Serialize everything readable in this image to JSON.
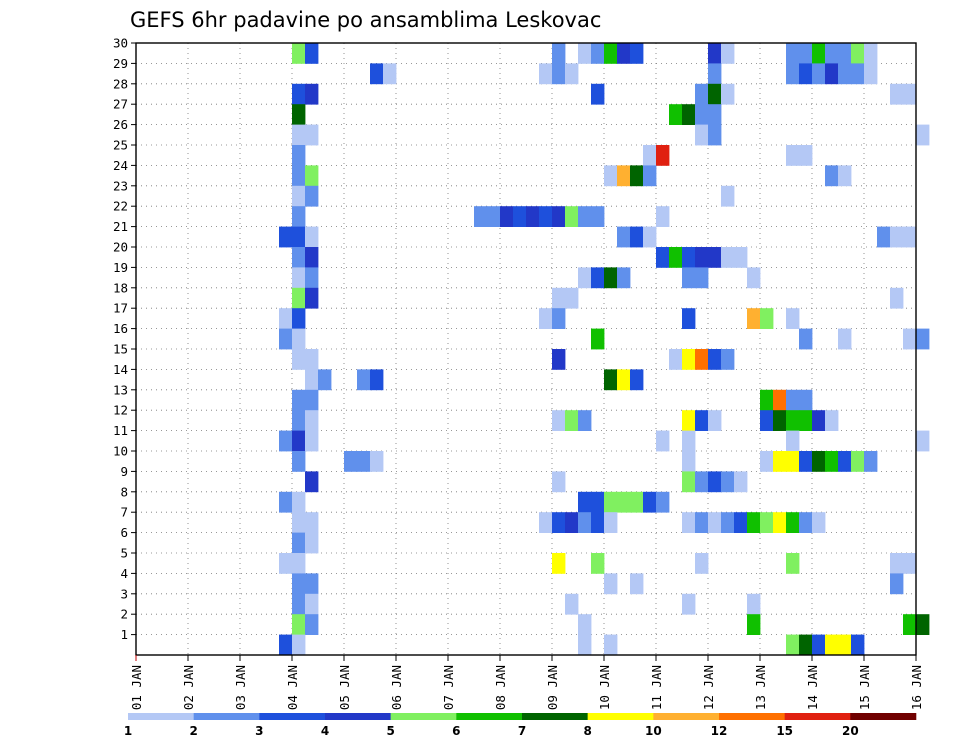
{
  "chart_data": {
    "type": "heatmap",
    "title": "GEFS 6hr padavine po ansamblima Leskovac",
    "xlabel": "",
    "ylabel": "",
    "x_ticks": [
      "01 JAN",
      "02 JAN",
      "03 JAN",
      "04 JAN",
      "05 JAN",
      "06 JAN",
      "07 JAN",
      "08 JAN",
      "09 JAN",
      "10 JAN",
      "11 JAN",
      "12 JAN",
      "13 JAN",
      "14 JAN",
      "15 JAN",
      "16 JAN"
    ],
    "xlim_days": [
      1,
      16
    ],
    "y_ticks": [
      1,
      2,
      3,
      4,
      5,
      6,
      7,
      8,
      9,
      10,
      11,
      12,
      13,
      14,
      15,
      16,
      17,
      18,
      19,
      20,
      21,
      22,
      23,
      24,
      25,
      26,
      27,
      28,
      29,
      30
    ],
    "ylim_members": [
      0,
      30
    ],
    "grid": true,
    "legend": {
      "placement": "bottom",
      "labels": [
        "1",
        "2",
        "3",
        "4",
        "5",
        "6",
        "7",
        "8",
        "10",
        "12",
        "15",
        "20"
      ],
      "colors": [
        "#b4c8f5",
        "#6090ec",
        "#1e50dc",
        "#2238c8",
        "#80f060",
        "#10c000",
        "#006400",
        "#ffff00",
        "#ffb030",
        "#ff7000",
        "#e02010",
        "#700000"
      ]
    },
    "series": [
      {
        "member": 30,
        "cells": [
          [
            4.0,
            5
          ],
          [
            4.25,
            3
          ],
          [
            9.0,
            2
          ],
          [
            9.5,
            1
          ],
          [
            9.75,
            2
          ],
          [
            10.0,
            6
          ],
          [
            10.25,
            4
          ],
          [
            10.5,
            3
          ],
          [
            12.0,
            4
          ],
          [
            12.25,
            1
          ],
          [
            13.5,
            2
          ],
          [
            13.75,
            2
          ],
          [
            14.0,
            6
          ],
          [
            14.25,
            2
          ],
          [
            14.5,
            2
          ],
          [
            14.75,
            5
          ],
          [
            15.0,
            1
          ]
        ]
      },
      {
        "member": 29,
        "cells": [
          [
            5.5,
            3
          ],
          [
            5.75,
            1
          ],
          [
            8.75,
            1
          ],
          [
            9.0,
            2
          ],
          [
            9.25,
            1
          ],
          [
            12.0,
            2
          ],
          [
            13.5,
            2
          ],
          [
            13.75,
            3
          ],
          [
            14.0,
            2
          ],
          [
            14.25,
            4
          ],
          [
            14.5,
            2
          ],
          [
            14.75,
            2
          ],
          [
            15.0,
            1
          ]
        ]
      },
      {
        "member": 28,
        "cells": [
          [
            4.0,
            3
          ],
          [
            4.25,
            4
          ],
          [
            9.75,
            3
          ],
          [
            11.75,
            2
          ],
          [
            12.0,
            7
          ],
          [
            12.25,
            1
          ],
          [
            15.5,
            1
          ],
          [
            15.75,
            1
          ]
        ]
      },
      {
        "member": 27,
        "cells": [
          [
            4.0,
            7
          ],
          [
            11.25,
            6
          ],
          [
            11.5,
            7
          ],
          [
            11.75,
            2
          ],
          [
            12.0,
            2
          ]
        ]
      },
      {
        "member": 26,
        "cells": [
          [
            4.0,
            1
          ],
          [
            4.25,
            1
          ],
          [
            11.75,
            1
          ],
          [
            12.0,
            2
          ],
          [
            16.0,
            1
          ]
        ]
      },
      {
        "member": 25,
        "cells": [
          [
            4.0,
            2
          ],
          [
            10.75,
            1
          ],
          [
            11.0,
            11
          ],
          [
            13.5,
            1
          ],
          [
            13.75,
            1
          ]
        ]
      },
      {
        "member": 24,
        "cells": [
          [
            4.0,
            2
          ],
          [
            4.25,
            5
          ],
          [
            10.0,
            1
          ],
          [
            10.25,
            9
          ],
          [
            10.5,
            7
          ],
          [
            10.75,
            2
          ],
          [
            14.25,
            2
          ],
          [
            14.5,
            1
          ]
        ]
      },
      {
        "member": 23,
        "cells": [
          [
            4.0,
            1
          ],
          [
            4.25,
            2
          ],
          [
            12.25,
            1
          ]
        ]
      },
      {
        "member": 22,
        "cells": [
          [
            4.0,
            2
          ],
          [
            7.5,
            2
          ],
          [
            7.75,
            2
          ],
          [
            8.0,
            4
          ],
          [
            8.25,
            3
          ],
          [
            8.5,
            4
          ],
          [
            8.75,
            3
          ],
          [
            9.0,
            4
          ],
          [
            9.25,
            5
          ],
          [
            9.5,
            2
          ],
          [
            9.75,
            2
          ],
          [
            11.0,
            1
          ]
        ]
      },
      {
        "member": 21,
        "cells": [
          [
            3.75,
            3
          ],
          [
            4.0,
            3
          ],
          [
            4.25,
            1
          ],
          [
            10.25,
            2
          ],
          [
            10.5,
            3
          ],
          [
            10.75,
            1
          ],
          [
            15.25,
            2
          ],
          [
            15.5,
            1
          ],
          [
            15.75,
            1
          ]
        ]
      },
      {
        "member": 20,
        "cells": [
          [
            4.0,
            2
          ],
          [
            4.25,
            4
          ],
          [
            11.0,
            3
          ],
          [
            11.25,
            6
          ],
          [
            11.5,
            3
          ],
          [
            11.75,
            4
          ],
          [
            12.0,
            4
          ],
          [
            12.25,
            1
          ],
          [
            12.5,
            1
          ]
        ]
      },
      {
        "member": 19,
        "cells": [
          [
            4.0,
            1
          ],
          [
            4.25,
            2
          ],
          [
            9.5,
            1
          ],
          [
            9.75,
            3
          ],
          [
            10.0,
            7
          ],
          [
            10.25,
            2
          ],
          [
            11.5,
            2
          ],
          [
            11.75,
            2
          ],
          [
            12.75,
            1
          ]
        ]
      },
      {
        "member": 18,
        "cells": [
          [
            4.0,
            5
          ],
          [
            4.25,
            4
          ],
          [
            9.0,
            1
          ],
          [
            9.25,
            1
          ],
          [
            15.5,
            1
          ]
        ]
      },
      {
        "member": 17,
        "cells": [
          [
            3.75,
            1
          ],
          [
            4.0,
            3
          ],
          [
            8.75,
            1
          ],
          [
            9.0,
            2
          ],
          [
            11.5,
            3
          ],
          [
            12.75,
            9
          ],
          [
            13.0,
            5
          ],
          [
            13.5,
            1
          ]
        ]
      },
      {
        "member": 16,
        "cells": [
          [
            3.75,
            2
          ],
          [
            4.0,
            1
          ],
          [
            9.75,
            6
          ],
          [
            13.75,
            2
          ],
          [
            14.5,
            1
          ],
          [
            15.75,
            1
          ],
          [
            16.0,
            2
          ]
        ]
      },
      {
        "member": 15,
        "cells": [
          [
            4.0,
            1
          ],
          [
            4.25,
            1
          ],
          [
            9.0,
            4
          ],
          [
            11.25,
            1
          ],
          [
            11.5,
            8
          ],
          [
            11.75,
            10
          ],
          [
            12.0,
            3
          ],
          [
            12.25,
            2
          ]
        ]
      },
      {
        "member": 14,
        "cells": [
          [
            4.25,
            1
          ],
          [
            4.5,
            2
          ],
          [
            5.25,
            2
          ],
          [
            5.5,
            3
          ],
          [
            10.0,
            7
          ],
          [
            10.25,
            8
          ],
          [
            10.5,
            3
          ]
        ]
      },
      {
        "member": 13,
        "cells": [
          [
            4.0,
            2
          ],
          [
            4.25,
            2
          ],
          [
            13.0,
            6
          ],
          [
            13.25,
            10
          ],
          [
            13.5,
            2
          ],
          [
            13.75,
            2
          ]
        ]
      },
      {
        "member": 12,
        "cells": [
          [
            4.0,
            2
          ],
          [
            4.25,
            1
          ],
          [
            9.0,
            1
          ],
          [
            9.25,
            5
          ],
          [
            9.5,
            2
          ],
          [
            11.5,
            8
          ],
          [
            11.75,
            3
          ],
          [
            12.0,
            1
          ],
          [
            13.0,
            3
          ],
          [
            13.25,
            7
          ],
          [
            13.5,
            6
          ],
          [
            13.75,
            6
          ],
          [
            14.0,
            4
          ],
          [
            14.25,
            1
          ]
        ]
      },
      {
        "member": 11,
        "cells": [
          [
            3.75,
            2
          ],
          [
            4.0,
            4
          ],
          [
            4.25,
            1
          ],
          [
            11.0,
            1
          ],
          [
            11.5,
            1
          ],
          [
            13.5,
            1
          ],
          [
            16.0,
            1
          ]
        ]
      },
      {
        "member": 10,
        "cells": [
          [
            4.0,
            2
          ],
          [
            5.0,
            2
          ],
          [
            5.25,
            2
          ],
          [
            5.5,
            1
          ],
          [
            11.5,
            1
          ],
          [
            13.0,
            1
          ],
          [
            13.25,
            8
          ],
          [
            13.5,
            8
          ],
          [
            13.75,
            3
          ],
          [
            14.0,
            7
          ],
          [
            14.25,
            6
          ],
          [
            14.5,
            3
          ],
          [
            14.75,
            5
          ],
          [
            15.0,
            2
          ]
        ]
      },
      {
        "member": 9,
        "cells": [
          [
            4.25,
            4
          ],
          [
            9.0,
            1
          ],
          [
            11.5,
            5
          ],
          [
            11.75,
            2
          ],
          [
            12.0,
            3
          ],
          [
            12.25,
            2
          ],
          [
            12.5,
            1
          ]
        ]
      },
      {
        "member": 8,
        "cells": [
          [
            3.75,
            2
          ],
          [
            4.0,
            1
          ],
          [
            9.5,
            3
          ],
          [
            9.75,
            3
          ],
          [
            10.0,
            5
          ],
          [
            10.25,
            5
          ],
          [
            10.5,
            5
          ],
          [
            10.75,
            3
          ],
          [
            11.0,
            2
          ]
        ]
      },
      {
        "member": 7,
        "cells": [
          [
            4.0,
            1
          ],
          [
            4.25,
            1
          ],
          [
            8.75,
            1
          ],
          [
            9.0,
            3
          ],
          [
            9.25,
            4
          ],
          [
            9.5,
            2
          ],
          [
            9.75,
            3
          ],
          [
            10.0,
            1
          ],
          [
            11.5,
            1
          ],
          [
            11.75,
            2
          ],
          [
            12.0,
            1
          ],
          [
            12.25,
            2
          ],
          [
            12.5,
            3
          ],
          [
            12.75,
            6
          ],
          [
            13.0,
            5
          ],
          [
            13.25,
            8
          ],
          [
            13.5,
            6
          ],
          [
            13.75,
            2
          ],
          [
            14.0,
            1
          ]
        ]
      },
      {
        "member": 6,
        "cells": [
          [
            4.0,
            2
          ],
          [
            4.25,
            1
          ]
        ]
      },
      {
        "member": 5,
        "cells": [
          [
            3.75,
            1
          ],
          [
            4.0,
            1
          ],
          [
            9.0,
            8
          ],
          [
            9.75,
            5
          ],
          [
            11.75,
            1
          ],
          [
            13.5,
            5
          ],
          [
            15.5,
            1
          ],
          [
            15.75,
            1
          ]
        ]
      },
      {
        "member": 4,
        "cells": [
          [
            4.0,
            2
          ],
          [
            4.25,
            2
          ],
          [
            10.0,
            1
          ],
          [
            10.5,
            1
          ],
          [
            15.5,
            2
          ]
        ]
      },
      {
        "member": 3,
        "cells": [
          [
            4.0,
            2
          ],
          [
            4.25,
            1
          ],
          [
            9.25,
            1
          ],
          [
            11.5,
            1
          ],
          [
            12.75,
            1
          ]
        ]
      },
      {
        "member": 2,
        "cells": [
          [
            4.0,
            5
          ],
          [
            4.25,
            2
          ],
          [
            9.5,
            1
          ],
          [
            12.75,
            6
          ],
          [
            15.75,
            6
          ],
          [
            16.0,
            7
          ]
        ]
      },
      {
        "member": 1,
        "cells": [
          [
            3.75,
            3
          ],
          [
            4.0,
            1
          ],
          [
            9.5,
            1
          ],
          [
            10.0,
            1
          ],
          [
            13.5,
            5
          ],
          [
            13.75,
            7
          ],
          [
            14.0,
            3
          ],
          [
            14.25,
            8
          ],
          [
            14.5,
            8
          ],
          [
            14.75,
            3
          ]
        ]
      }
    ]
  }
}
